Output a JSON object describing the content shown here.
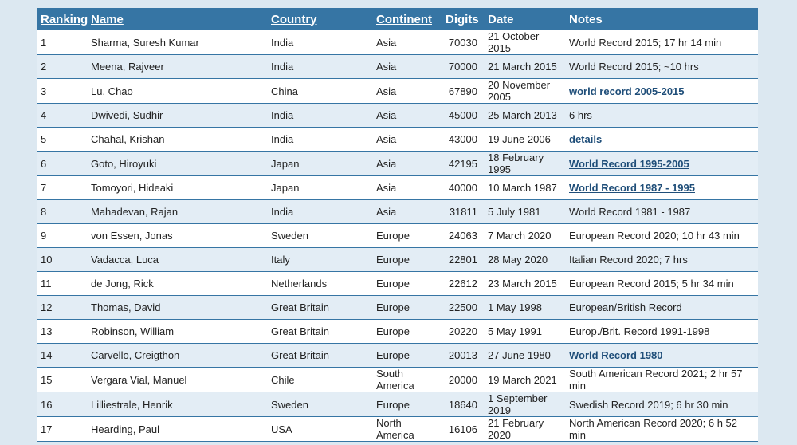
{
  "table": {
    "columns": [
      {
        "text": "Ranking",
        "link": true
      },
      {
        "text": "Name",
        "link": true
      },
      {
        "text": "Country",
        "link": true
      },
      {
        "text": "Continent",
        "link": true
      },
      {
        "text": "Digits",
        "link": false,
        "numeric": true
      },
      {
        "text": "Date",
        "link": false
      },
      {
        "text": "Notes",
        "link": false
      }
    ],
    "rows": [
      [
        1,
        "Sharma, Suresh Kumar",
        "India",
        "Asia",
        70030,
        "21 October 2015",
        {
          "text": "World Record 2015; 17 hr 14 min",
          "link": false
        }
      ],
      [
        2,
        "Meena, Rajveer",
        "India",
        "Asia",
        70000,
        "21 March 2015",
        {
          "text": "World Record 2015; ~10 hrs",
          "link": false
        }
      ],
      [
        3,
        "Lu, Chao",
        "China",
        "Asia",
        67890,
        "20 November 2005",
        {
          "text": "world record 2005-2015",
          "link": true
        }
      ],
      [
        4,
        "Dwivedi, Sudhir",
        "India",
        "Asia",
        45000,
        "25 March 2013",
        {
          "text": "6 hrs",
          "link": false
        }
      ],
      [
        5,
        "Chahal, Krishan",
        "India",
        "Asia",
        43000,
        "19 June 2006",
        {
          "text": "details",
          "link": true
        }
      ],
      [
        6,
        "Goto, Hiroyuki",
        "Japan",
        "Asia",
        42195,
        "18 February 1995",
        {
          "text": "World Record 1995-2005",
          "link": true
        }
      ],
      [
        7,
        "Tomoyori, Hideaki",
        "Japan",
        "Asia",
        40000,
        "10 March 1987",
        {
          "text": "World Record 1987 - 1995",
          "link": true
        }
      ],
      [
        8,
        "Mahadevan, Rajan",
        "India",
        "Asia",
        31811,
        "5 July 1981",
        {
          "text": "World Record 1981 - 1987",
          "link": false
        }
      ],
      [
        9,
        "von Essen, Jonas",
        "Sweden",
        "Europe",
        24063,
        "7 March 2020",
        {
          "text": "European Record 2020; 10 hr 43 min",
          "link": false
        }
      ],
      [
        10,
        "Vadacca, Luca",
        "Italy",
        "Europe",
        22801,
        "28 May 2020",
        {
          "text": "Italian Record 2020; 7 hrs",
          "link": false
        }
      ],
      [
        11,
        "de Jong, Rick",
        "Netherlands",
        "Europe",
        22612,
        "23 March 2015",
        {
          "text": "European Record 2015; 5 hr 34 min",
          "link": false
        }
      ],
      [
        12,
        "Thomas, David",
        "Great Britain",
        "Europe",
        22500,
        "1 May 1998",
        {
          "text": "European/British Record",
          "link": false
        }
      ],
      [
        13,
        "Robinson, William",
        "Great Britain",
        "Europe",
        20220,
        "5 May 1991",
        {
          "text": "Europ./Brit. Record 1991-1998",
          "link": false
        }
      ],
      [
        14,
        "Carvello, Creigthon",
        "Great Britain",
        "Europe",
        20013,
        "27 June 1980",
        {
          "text": "World Record 1980",
          "link": true
        }
      ],
      [
        15,
        "Vergara Vial, Manuel",
        "Chile",
        "South America",
        20000,
        "19 March 2021",
        {
          "text": "South American Record 2021; 2 hr 57 min",
          "link": false
        }
      ],
      [
        16,
        "Lilliestrale, Henrik",
        "Sweden",
        "Europe",
        18640,
        "1 September 2019",
        {
          "text": "Swedish Record 2019; 6 hr 30 min",
          "link": false
        }
      ],
      [
        17,
        "Hearding, Paul",
        "USA",
        "North America",
        16106,
        "21 February 2020",
        {
          "text": "North American Record 2020; 6 h 52 min",
          "link": false
        }
      ]
    ]
  }
}
